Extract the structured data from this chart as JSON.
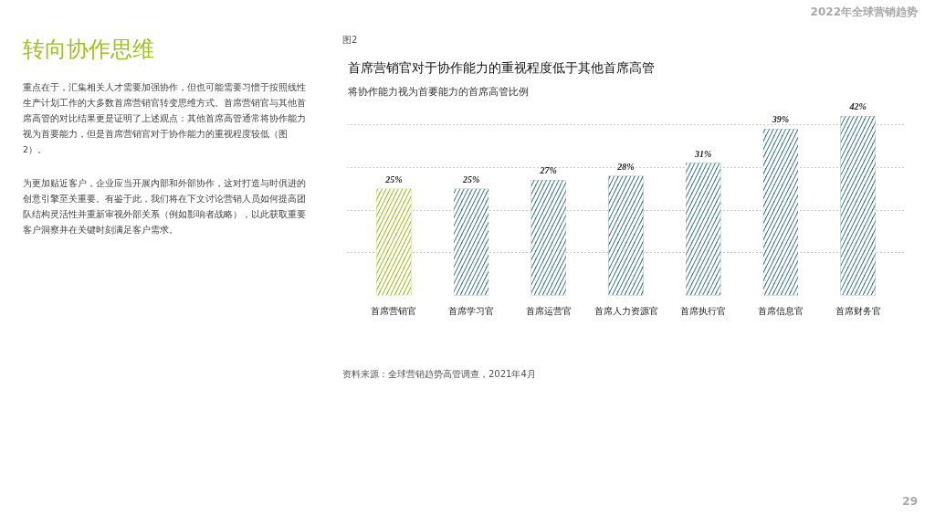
{
  "chart_data": {
    "type": "bar",
    "title": "首席营销官对于协作能力的重视程度低于其他首席高管",
    "subtitle": "将协作能力视为首要能力的首席高管比例",
    "categories": [
      "首席营销官",
      "首席学习官",
      "首席运营官",
      "首席人力资源官",
      "首席执行官",
      "首席信息官",
      "首席财务官"
    ],
    "values": [
      25,
      25,
      27,
      28,
      31,
      39,
      42
    ],
    "colors": [
      "#9cc21c",
      "#3f7a82",
      "#3f7a82",
      "#3f7a82",
      "#3f7a82",
      "#3f7a82",
      "#3f7a82"
    ],
    "value_labels": [
      "25%",
      "25%",
      "27%",
      "28%",
      "31%",
      "39%",
      "42%"
    ],
    "grid": "y",
    "tick_labels": "x",
    "annotations": [
      "图2",
      "资料来源：全球营销趋势高管调查，2021年4月",
      "2022年全球营销趋势",
      "29",
      "转向协作思维",
      "重点在于，汇集相关人才需要加强协作，但也可能需要习惯于按照线性生产计划工作的大多数首席营销官转变思维方式。首席营销官与其他首席高管的对比结果更是证明了上述观点：其他首席高管通常将协作能力视为首要能力，但是首席营销官对于协作能力的重视程度较低（图2）。",
      "为更加贴近客户，企业应当开展内部和外部协作，这对打造与时俱进的创意引擎至关重要。有鉴于此，我们将在下文讨论营销人员如何提高团队结构灵活性并重新审视外部关系（例如影响者战略），以此获取重要客户洞察并在关键时刻满足客户需求。"
    ]
  }
}
